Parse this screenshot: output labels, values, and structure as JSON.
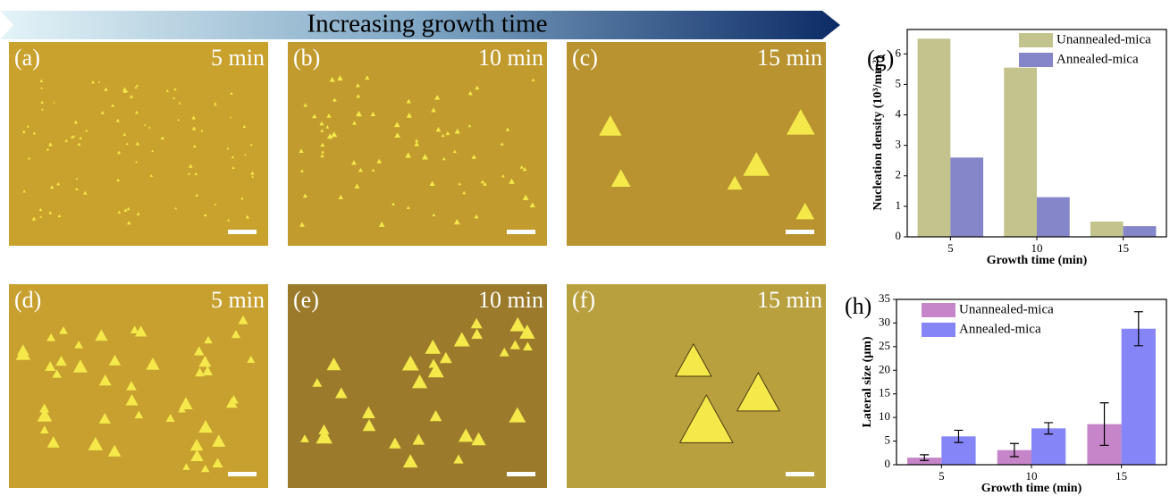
{
  "arrow_label": "Increasing growth time",
  "panels": [
    {
      "label": "(a)",
      "time": "5 min"
    },
    {
      "label": "(b)",
      "time": "10 min"
    },
    {
      "label": "(c)",
      "time": "15 min"
    },
    {
      "label": "(d)",
      "time": "5 min"
    },
    {
      "label": "(e)",
      "time": "10 min"
    },
    {
      "label": "(f)",
      "time": "15 min"
    }
  ],
  "chart_data": [
    {
      "type": "bar",
      "label": "(g)",
      "x_label": "Growth time (min)",
      "y_label": "Nucleation density (10³/mm²)",
      "categories": [
        "5",
        "10",
        "15"
      ],
      "series": [
        {
          "name": "Unannealed-mica",
          "color": "#c3c48d",
          "values": [
            6.5,
            5.55,
            0.5
          ]
        },
        {
          "name": "Annealed-mica",
          "color": "#8585c9",
          "values": [
            2.6,
            1.3,
            0.35
          ]
        }
      ],
      "ylim": [
        0,
        6.8
      ],
      "yticks": [
        0,
        1,
        2,
        3,
        4,
        5,
        6
      ],
      "legend": "upper right"
    },
    {
      "type": "bar",
      "label": "(h)",
      "x_label": "Growth time (min)",
      "y_label": "Lateral size (μm)",
      "categories": [
        "5",
        "10",
        "15"
      ],
      "series": [
        {
          "name": "Unannealed-mica",
          "color": "#c585c8",
          "values": [
            1.5,
            3.1,
            8.6
          ],
          "errors": [
            0.6,
            1.4,
            4.5
          ]
        },
        {
          "name": "Annealed-mica",
          "color": "#8585f8",
          "values": [
            6.0,
            7.7,
            28.8
          ],
          "errors": [
            1.3,
            1.2,
            3.6
          ]
        }
      ],
      "ylim": [
        0,
        35
      ],
      "yticks": [
        0,
        5,
        10,
        15,
        20,
        25,
        30,
        35
      ],
      "legend": "upper left"
    }
  ]
}
